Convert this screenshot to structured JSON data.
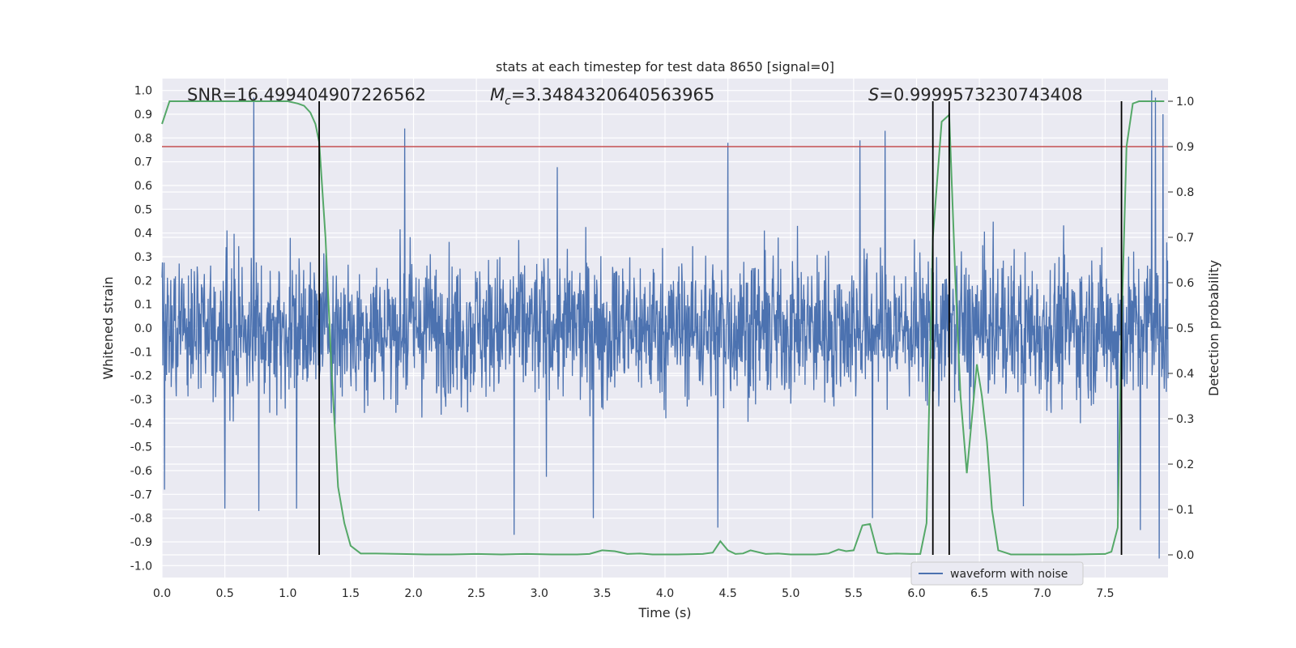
{
  "chart_data": {
    "type": "line",
    "title": "stats at each timestep for test data 8650 [signal=0]",
    "xlabel": "Time (s)",
    "ylabel_left": "Whitened strain",
    "ylabel_right": "Detection probability",
    "xlim": [
      0.0,
      8.0
    ],
    "ylim_left": [
      -1.05,
      1.05
    ],
    "ylim_right": [
      -0.05,
      1.05
    ],
    "grid": true,
    "x_ticks": [
      "0.0",
      "0.5",
      "1.0",
      "1.5",
      "2.0",
      "2.5",
      "3.0",
      "3.5",
      "4.0",
      "4.5",
      "5.0",
      "5.5",
      "6.0",
      "6.5",
      "7.0",
      "7.5"
    ],
    "y_ticks_left": [
      "1.0",
      "0.9",
      "0.8",
      "0.7",
      "0.6",
      "0.5",
      "0.4",
      "0.3",
      "0.2",
      "0.1",
      "0.0",
      "-0.1",
      "-0.2",
      "-0.3",
      "-0.4",
      "-0.5",
      "-0.6",
      "-0.7",
      "-0.8",
      "-0.9",
      "-1.0"
    ],
    "y_ticks_right": [
      "1.0",
      "0.9",
      "0.8",
      "0.7",
      "0.6",
      "0.5",
      "0.4",
      "0.3",
      "0.2",
      "0.1",
      "0.0"
    ],
    "annotations": {
      "snr": "SNR=16.499404907226562",
      "mc_symbol": "M",
      "mc_subscript": "c",
      "mc_value": "=3.3484320640563965",
      "s_symbol": "S",
      "s_value": "=0.9999573230743408"
    },
    "threshold": {
      "axis": "right",
      "y": 0.9,
      "color": "#c44e52"
    },
    "vertical_lines": [
      1.25,
      6.13,
      6.26,
      7.63
    ],
    "legend": {
      "label": "waveform with noise",
      "location": "lower-right"
    },
    "series": [
      {
        "name": "waveform with noise",
        "axis": "left",
        "color": "#4c72b0",
        "description": "dense noisy whitened strain trace",
        "time_range": [
          0.0,
          8.0
        ],
        "typical_envelope": 0.45,
        "peaks": [
          [
            0.02,
            -0.68
          ],
          [
            0.73,
            0.97
          ],
          [
            0.77,
            -0.77
          ],
          [
            0.5,
            -0.76
          ],
          [
            1.07,
            -0.76
          ],
          [
            1.93,
            0.84
          ],
          [
            2.8,
            -0.87
          ],
          [
            3.43,
            -0.8
          ],
          [
            4.42,
            -0.84
          ],
          [
            4.5,
            0.78
          ],
          [
            5.55,
            0.79
          ],
          [
            5.75,
            0.83
          ],
          [
            5.65,
            -0.8
          ],
          [
            6.85,
            -0.75
          ],
          [
            7.6,
            -0.79
          ],
          [
            7.78,
            -0.85
          ],
          [
            7.87,
            1.0
          ],
          [
            7.9,
            0.97
          ],
          [
            7.93,
            -0.97
          ],
          [
            7.96,
            0.9
          ]
        ]
      },
      {
        "name": "detection probability",
        "axis": "right",
        "color": "#55a868",
        "x": [
          0.0,
          0.06,
          0.12,
          0.5,
          0.9,
          1.0,
          1.08,
          1.13,
          1.18,
          1.22,
          1.25,
          1.3,
          1.35,
          1.4,
          1.45,
          1.5,
          1.58,
          1.7,
          1.9,
          2.1,
          2.3,
          2.5,
          2.7,
          2.9,
          3.1,
          3.3,
          3.4,
          3.5,
          3.6,
          3.7,
          3.8,
          3.9,
          4.1,
          4.3,
          4.38,
          4.44,
          4.5,
          4.56,
          4.62,
          4.68,
          4.8,
          4.9,
          5.0,
          5.2,
          5.3,
          5.38,
          5.44,
          5.5,
          5.57,
          5.63,
          5.69,
          5.76,
          5.84,
          5.95,
          6.03,
          6.08,
          6.13,
          6.2,
          6.26,
          6.31,
          6.35,
          6.4,
          6.44,
          6.48,
          6.52,
          6.56,
          6.6,
          6.65,
          6.75,
          7.0,
          7.25,
          7.5,
          7.55,
          7.6,
          7.63,
          7.67,
          7.72,
          7.77,
          7.85,
          7.92,
          7.97
        ],
        "y": [
          0.95,
          1.0,
          1.0,
          1.0,
          1.0,
          1.0,
          0.995,
          0.99,
          0.975,
          0.95,
          0.91,
          0.7,
          0.4,
          0.15,
          0.07,
          0.02,
          0.003,
          0.003,
          0.002,
          0.001,
          0.001,
          0.002,
          0.001,
          0.002,
          0.001,
          0.001,
          0.002,
          0.01,
          0.008,
          0.002,
          0.003,
          0.001,
          0.001,
          0.002,
          0.005,
          0.03,
          0.01,
          0.002,
          0.003,
          0.01,
          0.002,
          0.003,
          0.001,
          0.001,
          0.003,
          0.012,
          0.008,
          0.01,
          0.065,
          0.068,
          0.005,
          0.002,
          0.003,
          0.002,
          0.002,
          0.07,
          0.7,
          0.955,
          0.97,
          0.6,
          0.35,
          0.18,
          0.3,
          0.42,
          0.35,
          0.25,
          0.1,
          0.01,
          0.001,
          0.001,
          0.001,
          0.002,
          0.007,
          0.06,
          0.5,
          0.9,
          0.995,
          1.0,
          1.0,
          1.0,
          1.0
        ]
      }
    ]
  }
}
